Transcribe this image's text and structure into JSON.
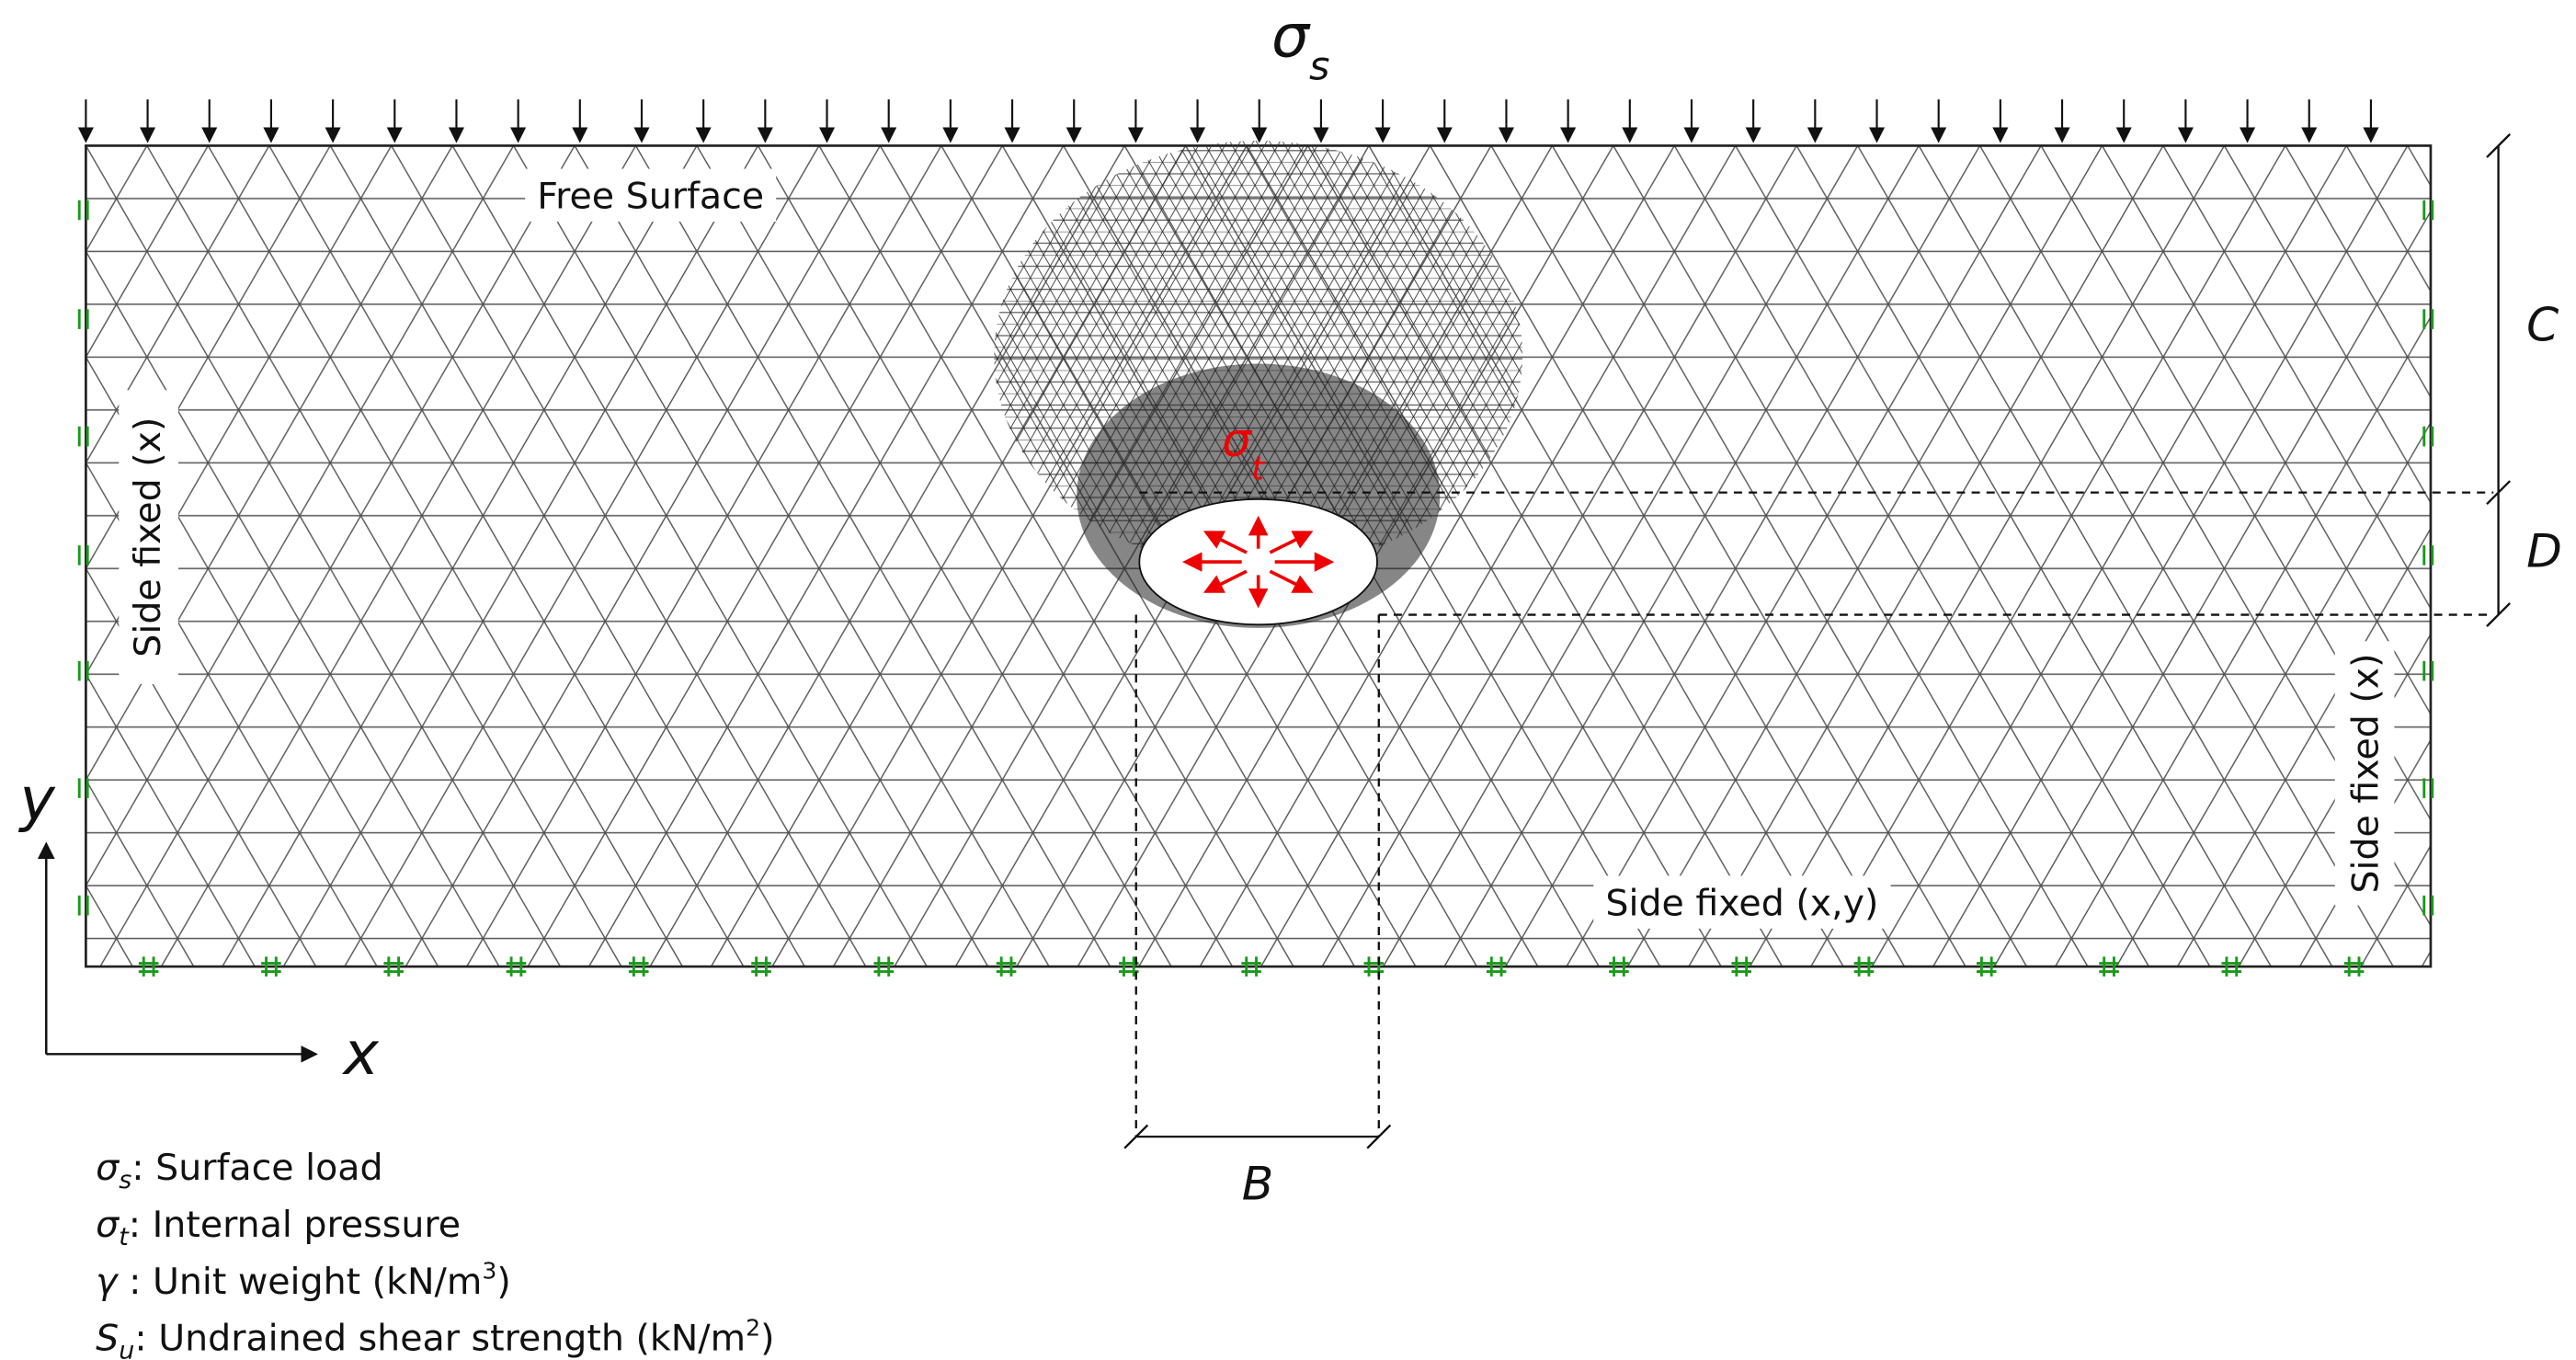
{
  "header": {
    "symbol": "σ",
    "subscript": "s"
  },
  "labels": {
    "free_surface": "Free Surface",
    "side_left": "Side fixed (x)",
    "side_right": "Side fixed (x)",
    "bottom": "Side fixed (x,y)",
    "internal": {
      "symbol": "σ",
      "subscript": "t"
    }
  },
  "dimensions": {
    "cover": "C",
    "depth": "D",
    "width": "B"
  },
  "axes": {
    "x": "x",
    "y": "y"
  },
  "legend": [
    {
      "symbol": "σ",
      "subscript": "s",
      "text": ": Surface load"
    },
    {
      "symbol": "σ",
      "subscript": "t",
      "text": ": Internal pressure"
    },
    {
      "symbol": "γ",
      "text": " : Unit weight (kN/m",
      "superscript": "3",
      "after": ")"
    },
    {
      "symbol": "S",
      "subscript": "u",
      "text": ": Undrained shear strength (kN/m",
      "superscript": "2",
      "after": ")"
    }
  ]
}
